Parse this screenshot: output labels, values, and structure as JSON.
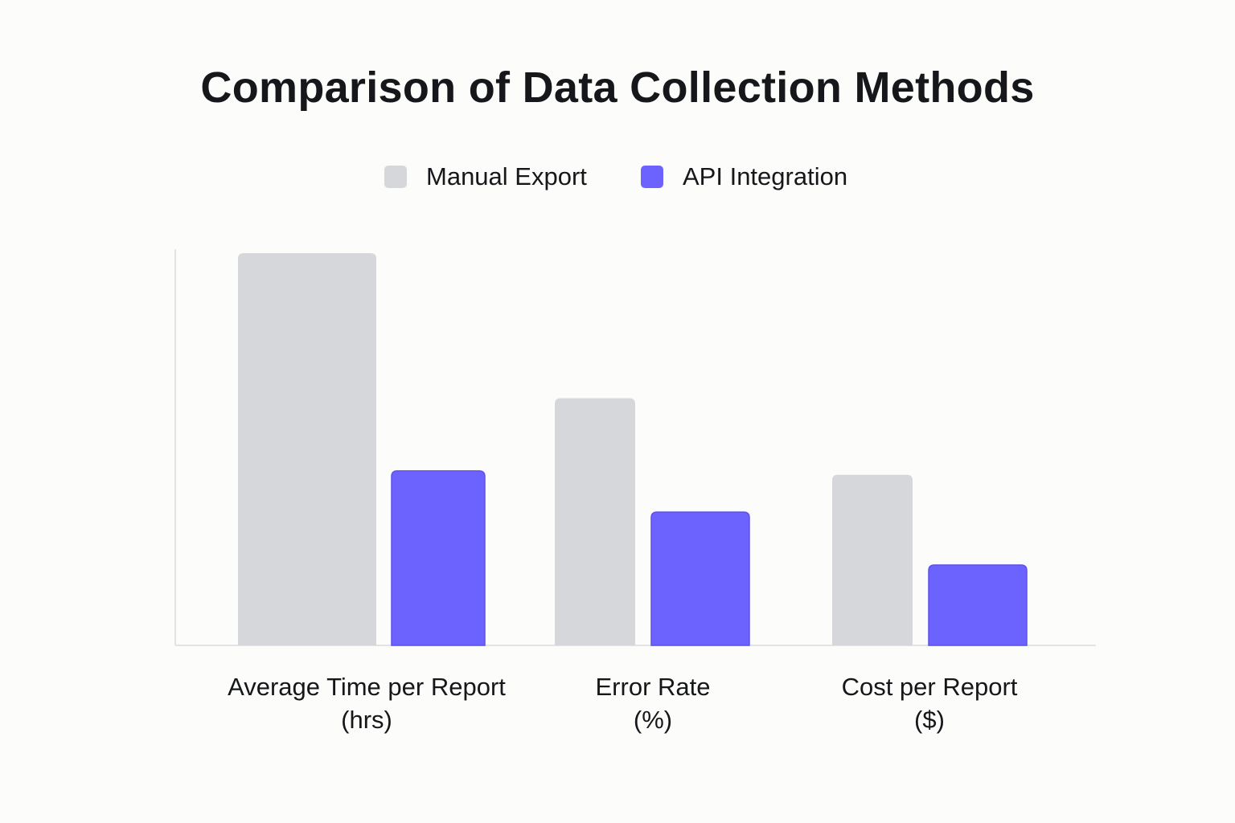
{
  "chart_data": {
    "type": "bar",
    "title": "Comparison of Data Collection Methods",
    "categories": [
      {
        "line1": "Average Time per Report",
        "line2": "(hrs)"
      },
      {
        "line1": "Error Rate",
        "line2": "(%)"
      },
      {
        "line1": "Cost per Report",
        "line2": "($)"
      }
    ],
    "series": [
      {
        "name": "Manual Export",
        "color": "#d6d7da",
        "values": [
          10,
          6.3,
          4.35
        ]
      },
      {
        "name": "API Integration",
        "color": "#6c63ff",
        "values": [
          4.45,
          3.4,
          2.05
        ]
      }
    ],
    "ylim": [
      0,
      10
    ],
    "y_axis_ticks_shown": false,
    "grid": false,
    "legend_position": "top-center"
  }
}
